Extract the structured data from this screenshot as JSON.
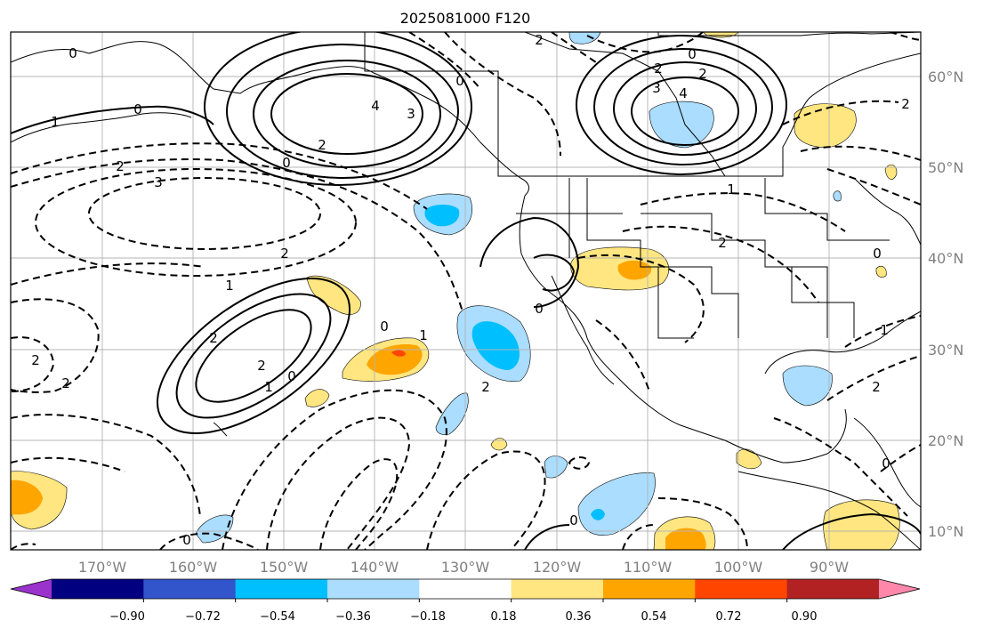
{
  "title": "2025081000 F120",
  "lon_labels": [
    "170°W",
    "160°W",
    "150°W",
    "140°W",
    "130°W",
    "120°W",
    "110°W",
    "100°W",
    "90°W"
  ],
  "lat_labels": [
    "60°N",
    "50°N",
    "40°N",
    "30°N",
    "20°N",
    "10°N"
  ],
  "colorbar": {
    "ticks": [
      "−0.90",
      "−0.72",
      "−0.54",
      "−0.36",
      "−0.18",
      "0.18",
      "0.36",
      "0.54",
      "0.72",
      "0.90"
    ],
    "colors": [
      "#9933cc",
      "#000080",
      "#3355cc",
      "#00bfff",
      "#aaddff",
      "#ffffff",
      "#ffe680",
      "#ffa500",
      "#ff4500",
      "#b22222",
      "#ff88aa"
    ]
  },
  "contour_labels": [
    {
      "text": "0"
    },
    {
      "text": "1"
    },
    {
      "text": "0"
    },
    {
      "text": "2"
    },
    {
      "text": "3"
    },
    {
      "text": "2"
    },
    {
      "text": "4"
    },
    {
      "text": "3"
    },
    {
      "text": "2"
    },
    {
      "text": "0"
    },
    {
      "text": "0"
    },
    {
      "text": "2"
    },
    {
      "text": "2"
    },
    {
      "text": "4"
    },
    {
      "text": "3"
    },
    {
      "text": "2"
    },
    {
      "text": "0"
    },
    {
      "text": "1"
    },
    {
      "text": "2"
    },
    {
      "text": "1"
    },
    {
      "text": "0"
    },
    {
      "text": "2"
    },
    {
      "text": "2"
    },
    {
      "text": "1"
    },
    {
      "text": "0"
    },
    {
      "text": "1"
    },
    {
      "text": "0"
    },
    {
      "text": "2"
    },
    {
      "text": "2"
    },
    {
      "text": "2"
    },
    {
      "text": "0"
    },
    {
      "text": "0"
    },
    {
      "text": "2"
    },
    {
      "text": "1"
    },
    {
      "text": "2"
    },
    {
      "text": "0"
    },
    {
      "text": "0"
    }
  ]
}
